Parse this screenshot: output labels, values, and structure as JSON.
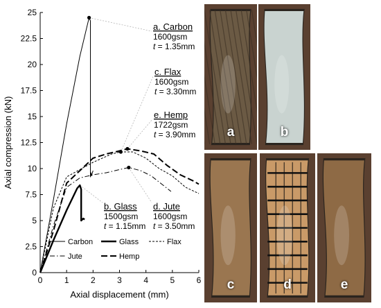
{
  "chart_data": {
    "type": "line",
    "title": "",
    "xlabel": "Axial displacement (mm)",
    "ylabel": "Axial compression (kN)",
    "xlim": [
      0,
      6
    ],
    "ylim": [
      0,
      25
    ],
    "xticks": [
      "0",
      "1",
      "2",
      "3",
      "4",
      "5",
      "6"
    ],
    "yticks": [
      "0",
      "2.5",
      "5",
      "7.5",
      "10",
      "12.5",
      "15",
      "17.5",
      "20",
      "22.5",
      "25"
    ],
    "grid": false,
    "legend_position": "bottom-center",
    "series": [
      {
        "name": "Carbon",
        "style": "thin-solid",
        "x": [
          0,
          0.5,
          1.0,
          1.5,
          1.85,
          1.9,
          1.9,
          1.92,
          1.94,
          2.0
        ],
        "y": [
          0,
          7.0,
          14.3,
          20.8,
          24.5,
          24.2,
          9.2,
          9.6,
          9.3,
          9.8
        ],
        "peak": {
          "x": 1.85,
          "y": 24.5
        }
      },
      {
        "name": "Glass",
        "style": "thick-solid",
        "x": [
          0,
          0.5,
          1.0,
          1.4,
          1.5,
          1.55,
          1.55,
          1.63,
          1.68
        ],
        "y": [
          0,
          3.1,
          6.0,
          8.1,
          8.4,
          8.0,
          5.0,
          5.2,
          5.1
        ],
        "peak": {
          "x": 1.5,
          "y": 8.4
        }
      },
      {
        "name": "Flax",
        "style": "short-dash",
        "x": [
          0,
          0.5,
          1.0,
          2.0,
          2.7,
          3.05,
          3.5,
          4.0,
          4.5,
          5.0,
          5.5,
          6.0
        ],
        "y": [
          0,
          6.2,
          9.2,
          10.6,
          11.4,
          11.6,
          11.6,
          11.0,
          10.0,
          9.3,
          8.2,
          7.6
        ],
        "peak": {
          "x": 3.05,
          "y": 11.6
        }
      },
      {
        "name": "Jute",
        "style": "dash-dot",
        "x": [
          0,
          0.5,
          1.0,
          1.5,
          2.0,
          2.5,
          3.0,
          3.35,
          3.8,
          4.2,
          4.6,
          4.95
        ],
        "y": [
          0,
          4.5,
          8.2,
          9.1,
          9.4,
          9.6,
          9.9,
          10.1,
          9.8,
          9.3,
          8.5,
          7.8
        ],
        "peak": {
          "x": 3.35,
          "y": 10.1
        }
      },
      {
        "name": "Hemp",
        "style": "long-dash",
        "x": [
          0,
          0.5,
          1.0,
          1.5,
          2.0,
          2.5,
          3.0,
          3.3,
          3.8,
          4.3,
          4.8,
          5.3,
          5.8,
          6.0
        ],
        "y": [
          0,
          4.0,
          8.6,
          9.8,
          11.0,
          11.4,
          11.7,
          11.9,
          11.7,
          11.4,
          10.3,
          9.4,
          8.8,
          8.5
        ],
        "peak": {
          "x": 3.3,
          "y": 11.9
        }
      }
    ],
    "annotations": [
      {
        "name": "a. Carbon",
        "gsm": "1600gsm",
        "thickness_label": "t",
        "thickness_value": " = 1.35mm",
        "series": "Carbon"
      },
      {
        "name": "c. Flax",
        "gsm": "1600gsm",
        "thickness_label": "t",
        "thickness_value": " = 3.30mm",
        "series": "Flax"
      },
      {
        "name": "e. Hemp",
        "gsm": "1722gsm",
        "thickness_label": "t",
        "thickness_value": " = 3.90mm",
        "series": "Hemp"
      },
      {
        "name": "b. Glass",
        "gsm": "1500gsm",
        "thickness_label": "t",
        "thickness_value": " = 1.15mm",
        "series": "Glass"
      },
      {
        "name": "d. Jute",
        "gsm": "1600gsm",
        "thickness_label": "t",
        "thickness_value": " = 3.50mm",
        "series": "Jute"
      }
    ]
  },
  "photos": [
    {
      "label": "a",
      "tint": "#6b5a44"
    },
    {
      "label": "b",
      "tint": "#c9d3d0"
    },
    {
      "label": "c",
      "tint": "#9a7650"
    },
    {
      "label": "d",
      "tint": "#c99a68"
    },
    {
      "label": "e",
      "tint": "#8e6a45"
    }
  ],
  "colors": {
    "series_line": "#000000",
    "leader_line": "#b5b5b5",
    "photo_frame": "#1e1a17",
    "photo_rig": "#5a4030"
  }
}
